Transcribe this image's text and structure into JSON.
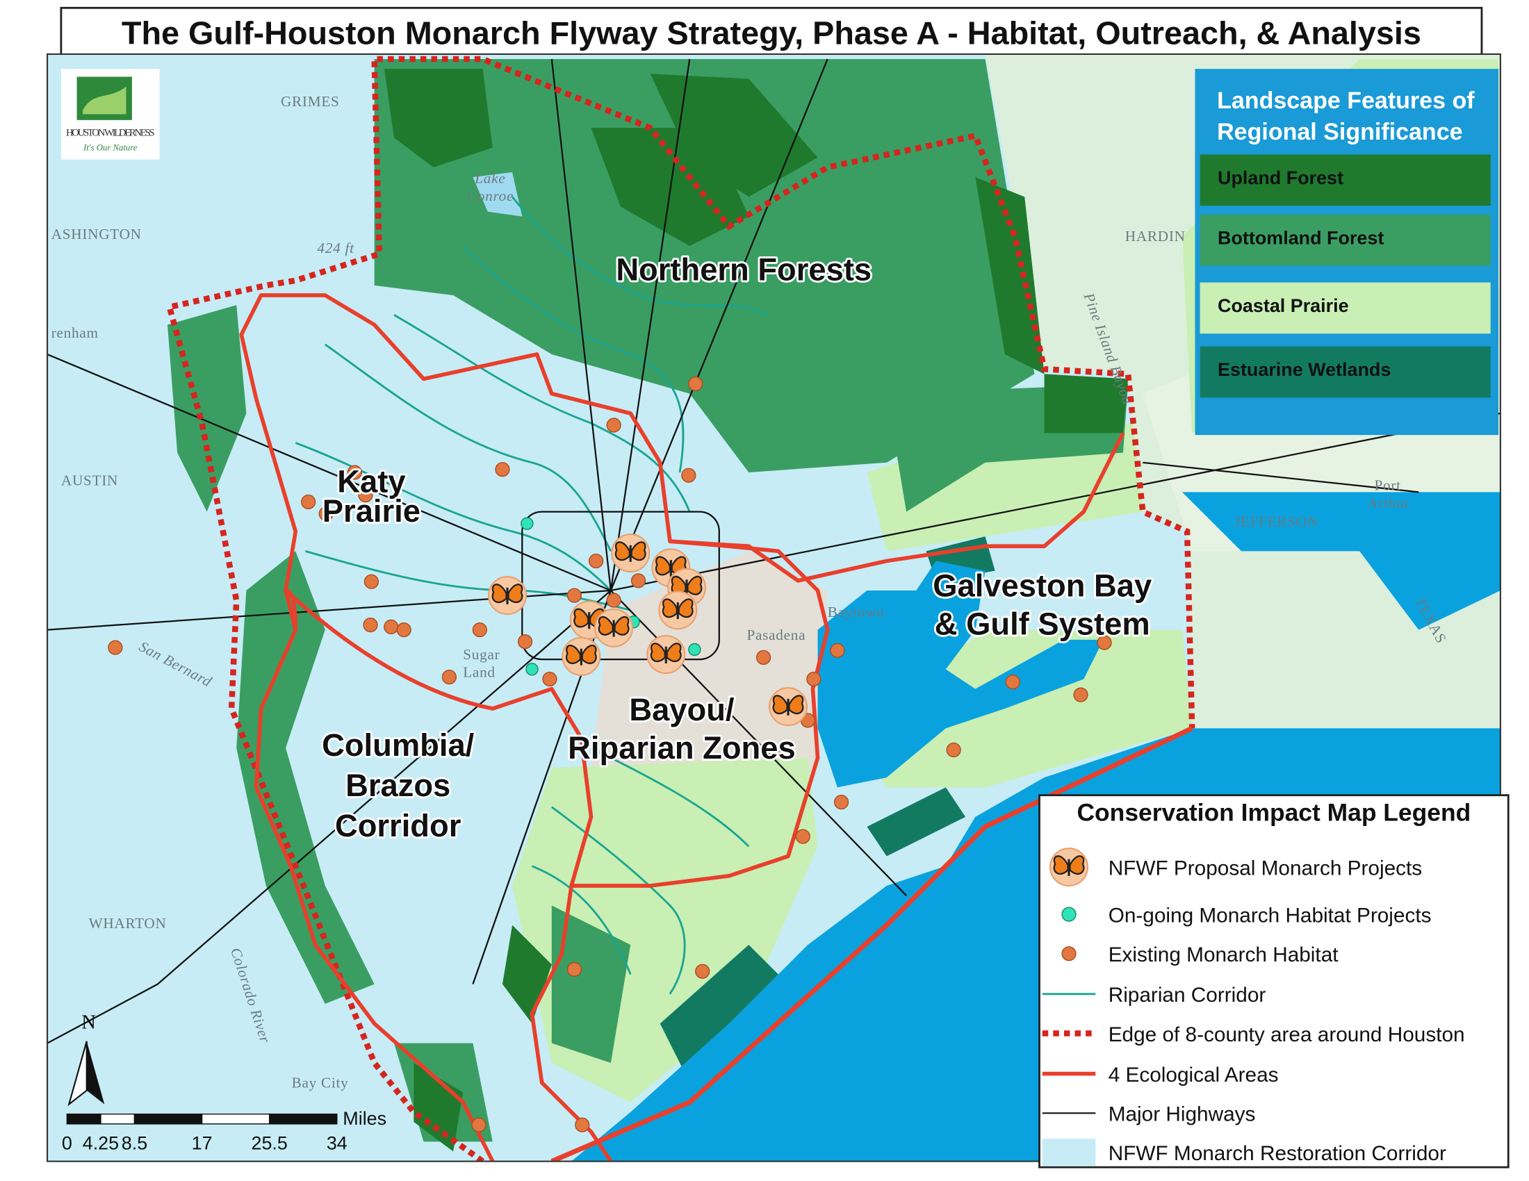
{
  "title": "The Gulf-Houston Monarch Flyway Strategy, Phase A - Habitat, Outreach, & Analysis",
  "logo": {
    "name": "HOUSTON WILDERNESS",
    "tagline": "It's Our Nature"
  },
  "landscape_legend": {
    "title": [
      "Landscape Features of",
      "Regional Significance"
    ],
    "items": [
      {
        "label": "Upland Forest",
        "color": "#1f7a2e"
      },
      {
        "label": "Bottomland Forest",
        "color": "#3a9e62"
      },
      {
        "label": "Coastal Prairie",
        "color": "#c9efb4"
      },
      {
        "label": "Estuarine Wetlands",
        "color": "#137a62"
      }
    ]
  },
  "impact_legend": {
    "title": "Conservation Impact Map Legend",
    "items": [
      "NFWF Proposal Monarch Projects",
      "On-going Monarch Habitat Projects",
      "Existing Monarch Habitat",
      "Riparian Corridor",
      "Edge of 8-county area around Houston",
      "4 Ecological Areas",
      "Major Highways",
      "NFWF Monarch Restoration Corridor"
    ]
  },
  "regions": [
    [
      "Northern Forests"
    ],
    [
      "Katy",
      "Prairie"
    ],
    [
      "Columbia/",
      "Brazos",
      "Corridor"
    ],
    [
      "Bayou/",
      "Riparian Zones"
    ],
    [
      "Galveston Bay",
      "& Gulf System"
    ]
  ],
  "places": [
    "GRIMES",
    "ASHINGTON",
    "renham",
    "AUSTIN",
    "WHARTON",
    "HARDIN",
    "JEFFERSON",
    "Lake",
    "Conroe",
    "424 ft",
    "Bay City",
    "Sugar",
    "Land",
    "Baytown",
    "Pasadena",
    "Port",
    "Arthur",
    "Pine Island Bayou",
    "San Bernard",
    "Colorado River",
    "TEXAS"
  ],
  "north": "N",
  "scale": {
    "unit": "Miles",
    "ticks": [
      0,
      4.25,
      8.5,
      17,
      25.5,
      34
    ]
  }
}
